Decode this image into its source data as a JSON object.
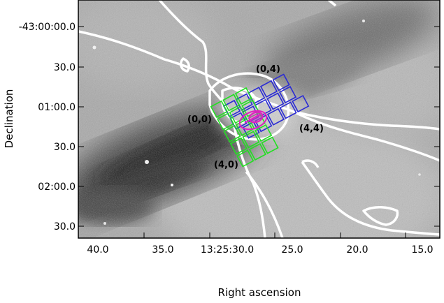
{
  "figure": {
    "xlabel": "Right ascension",
    "ylabel": "Declination",
    "x_ticks": [
      "40.0",
      "35.0",
      "13:25:30.0",
      "25.0",
      "20.0",
      "15.0"
    ],
    "y_ticks": [
      "-43:00:00.0",
      "30.0",
      "01:00.0",
      "30.0",
      "02:00.0",
      "30.0"
    ],
    "grid_labels": [
      "(0,4)",
      "(0,0)",
      "(4,4)",
      "(4,0)"
    ],
    "colors": {
      "contours": "#ffffff",
      "grid_a": "#2b2bd4",
      "grid_b": "#22e022",
      "marker": "#e020c0",
      "frame": "#000000"
    }
  }
}
